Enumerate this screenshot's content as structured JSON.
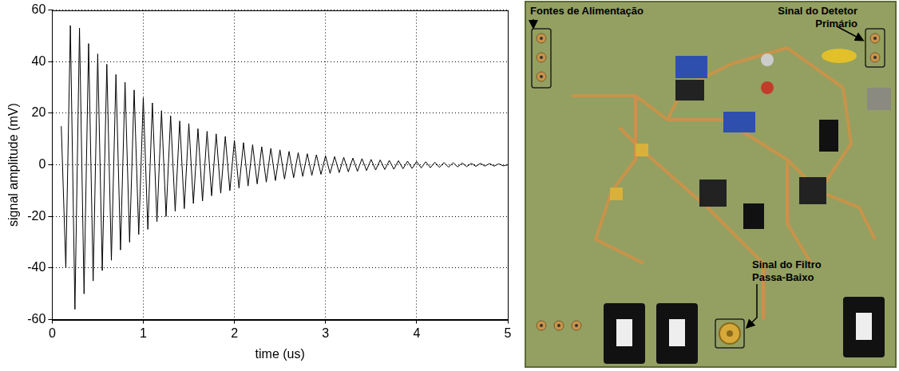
{
  "chart_data": {
    "type": "line",
    "xlabel": "time (us)",
    "ylabel": "signal amplitude (mV)",
    "x": [
      0.1,
      0.15,
      0.2,
      0.25,
      0.3,
      0.35,
      0.4,
      0.45,
      0.5,
      0.55,
      0.6,
      0.65,
      0.7,
      0.75,
      0.8,
      0.85,
      0.9,
      0.95,
      1.0,
      1.05,
      1.1,
      1.15,
      1.2,
      1.25,
      1.3,
      1.35,
      1.4,
      1.45,
      1.5,
      1.55,
      1.6,
      1.65,
      1.7,
      1.75,
      1.8,
      1.85,
      1.9,
      1.95,
      2.0,
      2.05,
      2.1,
      2.15,
      2.2,
      2.25,
      2.3,
      2.35,
      2.4,
      2.45,
      2.5,
      2.55,
      2.6,
      2.65,
      2.7,
      2.75,
      2.8,
      2.85,
      2.9,
      2.95,
      3.0,
      3.05,
      3.1,
      3.15,
      3.2,
      3.25,
      3.3,
      3.35,
      3.4,
      3.45,
      3.5,
      3.55,
      3.6,
      3.65,
      3.7,
      3.75,
      3.8,
      3.85,
      3.9,
      3.95,
      4.0,
      4.05,
      4.1,
      4.15,
      4.2,
      4.25,
      4.3,
      4.35,
      4.4,
      4.45,
      4.5,
      4.55,
      4.6,
      4.65,
      4.7,
      4.75,
      4.8,
      4.85,
      4.9,
      4.95,
      5.0
    ],
    "values": [
      15,
      -40,
      54,
      -56,
      53,
      -50,
      47,
      -45,
      43,
      -41,
      39,
      -37,
      35,
      -33,
      32,
      -30,
      29,
      -27,
      26,
      -25,
      24,
      -22,
      21,
      -20,
      19,
      -18,
      17,
      -17,
      16,
      -15,
      14,
      -14,
      13,
      -12,
      12,
      -11,
      11,
      -10,
      9.5,
      -9,
      8.6,
      -8.2,
      7.8,
      -7.4,
      7,
      -6.7,
      6.4,
      -6.1,
      5.8,
      -5.5,
      5.2,
      -5,
      4.7,
      -4.5,
      4.3,
      -4.1,
      3.9,
      -3.7,
      3.5,
      -3.3,
      3.2,
      -3,
      2.9,
      -2.7,
      2.6,
      -2.5,
      2.4,
      -2.2,
      2.1,
      -2,
      1.9,
      -1.8,
      1.7,
      -1.7,
      1.6,
      -1.5,
      1.4,
      -1.4,
      1.3,
      -1.2,
      1.2,
      -1.1,
      1,
      -1,
      0.9,
      -0.9,
      0.8,
      -0.8,
      0.7,
      -0.7,
      0.6,
      -0.6,
      0.6,
      -0.5,
      0.5,
      -0.5,
      0.4,
      -0.4,
      0
    ],
    "color": "#000000",
    "line_style": "solid",
    "xlim": [
      0,
      5
    ],
    "xticks": [
      0,
      1,
      2,
      3,
      4,
      5
    ],
    "ylim": [
      -60,
      60
    ],
    "yticks": [
      -60,
      -40,
      -20,
      0,
      20,
      40,
      60
    ],
    "grid": true
  },
  "photo": {
    "labels": [
      {
        "lines": [
          "Fontes de Alimentação"
        ]
      },
      {
        "lines": [
          "Sinal do Detetor",
          "Primário"
        ]
      },
      {
        "lines": [
          "Sinal do Filtro",
          "Passa-Baixo"
        ]
      }
    ]
  }
}
